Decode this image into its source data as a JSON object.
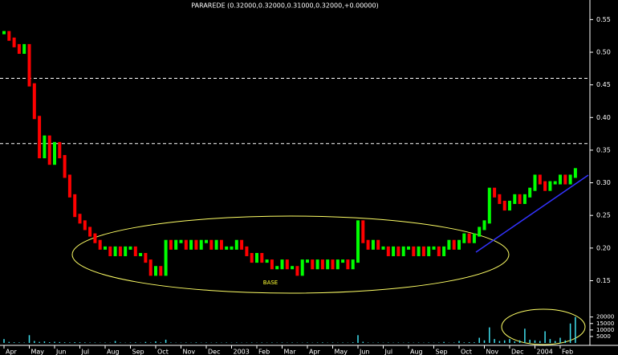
{
  "chart_data": {
    "type": "price-bars",
    "title": "PARAREDE (0.32000,0.32000,0.31000,0.32000,+0.00000)",
    "annotation": "BASE",
    "categories": [
      "Apr",
      null,
      null,
      null,
      null,
      "May",
      null,
      null,
      null,
      null,
      "Jun",
      null,
      null,
      null,
      null,
      "Jul",
      null,
      null,
      null,
      null,
      "Aug",
      null,
      null,
      null,
      null,
      "Sep",
      null,
      null,
      null,
      null,
      "Oct",
      null,
      null,
      null,
      null,
      "Nov",
      null,
      null,
      null,
      null,
      "Dec",
      null,
      null,
      null,
      null,
      "2003",
      null,
      null,
      null,
      null,
      "Feb",
      null,
      null,
      null,
      null,
      "Mar",
      null,
      null,
      null,
      null,
      "Apr",
      null,
      null,
      null,
      null,
      "May",
      null,
      null,
      null,
      null,
      "Jun",
      null,
      null,
      null,
      null,
      "Jul",
      null,
      null,
      null,
      null,
      "Aug",
      null,
      null,
      null,
      null,
      "Sep",
      null,
      null,
      null,
      null,
      "Oct",
      null,
      null,
      null,
      null,
      "Nov",
      null,
      null,
      null,
      null,
      "Dec",
      null,
      null,
      null,
      null,
      "2004",
      null,
      null,
      null,
      null,
      "Feb",
      null,
      null,
      null
    ],
    "close": [
      0.53,
      0.52,
      0.51,
      0.5,
      0.51,
      0.45,
      0.4,
      0.34,
      0.37,
      0.33,
      0.36,
      0.34,
      0.31,
      0.28,
      0.25,
      0.24,
      0.23,
      0.22,
      0.21,
      0.2,
      0.2,
      0.19,
      0.2,
      0.19,
      0.2,
      0.2,
      0.19,
      0.19,
      0.18,
      0.16,
      0.17,
      0.16,
      0.21,
      0.2,
      0.21,
      0.21,
      0.2,
      0.21,
      0.2,
      0.21,
      0.21,
      0.2,
      0.21,
      0.2,
      0.2,
      0.2,
      0.21,
      0.2,
      0.19,
      0.18,
      0.19,
      0.18,
      0.18,
      0.17,
      0.17,
      0.18,
      0.17,
      0.17,
      0.16,
      0.18,
      0.18,
      0.17,
      0.18,
      0.17,
      0.18,
      0.17,
      0.18,
      0.18,
      0.17,
      0.18,
      0.24,
      0.21,
      0.2,
      0.21,
      0.2,
      0.2,
      0.19,
      0.2,
      0.19,
      0.2,
      0.2,
      0.19,
      0.2,
      0.19,
      0.2,
      0.2,
      0.19,
      0.2,
      0.21,
      0.2,
      0.21,
      0.22,
      0.21,
      0.22,
      0.23,
      0.24,
      0.29,
      0.28,
      0.27,
      0.26,
      0.27,
      0.28,
      0.27,
      0.28,
      0.29,
      0.31,
      0.3,
      0.29,
      0.3,
      0.3,
      0.31,
      0.3,
      0.31,
      0.32
    ],
    "up_color": "#00ff00",
    "down_color": "#ff0000",
    "ylim": [
      0.11,
      0.58
    ],
    "yticks": [
      0.55,
      {
        "value": 0.5,
        "label": "0.50"
      },
      0.45,
      {
        "value": 0.4,
        "label": "0.40"
      },
      0.35,
      {
        "value": 0.3,
        "label": "0.30"
      },
      0.25,
      {
        "value": 0.2,
        "label": "0.20"
      },
      0.15
    ],
    "hlines": [
      0.46,
      0.36
    ],
    "volume": {
      "color": "#40e0f0",
      "ylim": [
        0,
        26000
      ],
      "yticks": [
        20000,
        15000,
        10000,
        5000
      ],
      "values": [
        3000,
        800,
        500,
        400,
        300,
        6000,
        1500,
        800,
        1200,
        600,
        900,
        700,
        500,
        400,
        600,
        500,
        400,
        300,
        300,
        200,
        300,
        200,
        1500,
        300,
        200,
        300,
        400,
        200,
        800,
        300,
        1200,
        400,
        2500,
        300,
        200,
        200,
        300,
        200,
        400,
        200,
        300,
        200,
        300,
        200,
        300,
        200,
        300,
        200,
        200,
        300,
        200,
        300,
        200,
        300,
        200,
        300,
        200,
        300,
        200,
        200,
        300,
        200,
        300,
        400,
        200,
        300,
        200,
        300,
        200,
        500,
        6000,
        900,
        300,
        200,
        300,
        200,
        300,
        200,
        300,
        200,
        300,
        200,
        300,
        200,
        300,
        200,
        300,
        800,
        200,
        300,
        1500,
        400,
        600,
        500,
        4000,
        2000,
        12000,
        3000,
        1500,
        2000,
        3000,
        1200,
        2000,
        11000,
        2500,
        2000,
        1500,
        9000,
        3000,
        1500,
        4000,
        2000,
        15000,
        20000
      ]
    }
  }
}
